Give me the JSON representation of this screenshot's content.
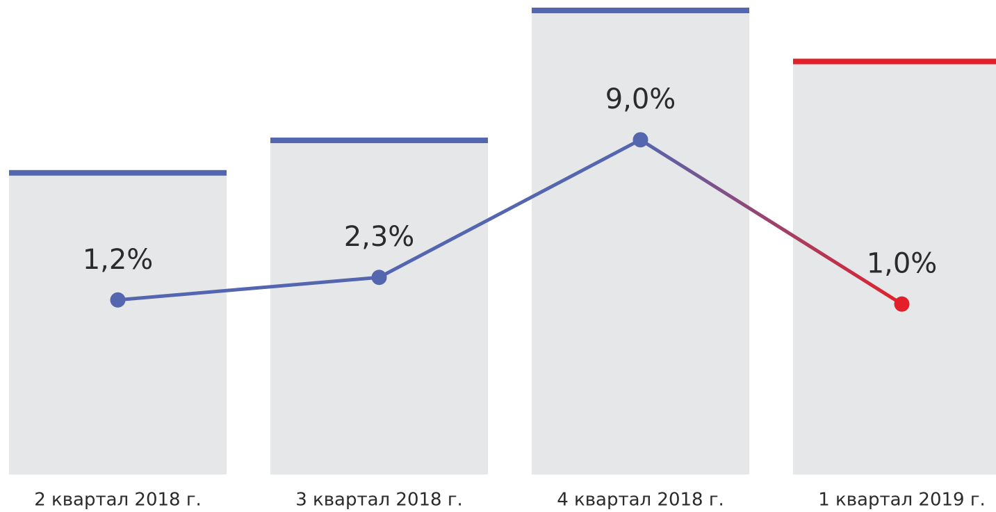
{
  "chart_data": {
    "type": "bar-line",
    "categories": [
      "2 квартал 2018 г.",
      "3 квартал 2018 г.",
      "4 квартал 2018 г.",
      "1 квартал 2019 г."
    ],
    "ylim": [
      0,
      100
    ],
    "y2lim": [
      -7.3,
      15.3
    ],
    "series": [
      {
        "type": "bar",
        "color": "#e6e7e9",
        "values": [
          65,
          72,
          100,
          89
        ],
        "colors": [
          "#5466b0",
          "#5466b0",
          "#5466b0",
          "#e3202a"
        ]
      },
      {
        "type": "line",
        "axis": "y2",
        "color": "#5466b0",
        "values": [
          1.2,
          2.3,
          9.0,
          1.0
        ],
        "value_labels": [
          "1,2%",
          "2,3%",
          "9,0%",
          "1,0%"
        ],
        "colors": [
          "#5466b0",
          "#5466b0",
          "#5466b0",
          "#e3202a"
        ]
      }
    ]
  }
}
